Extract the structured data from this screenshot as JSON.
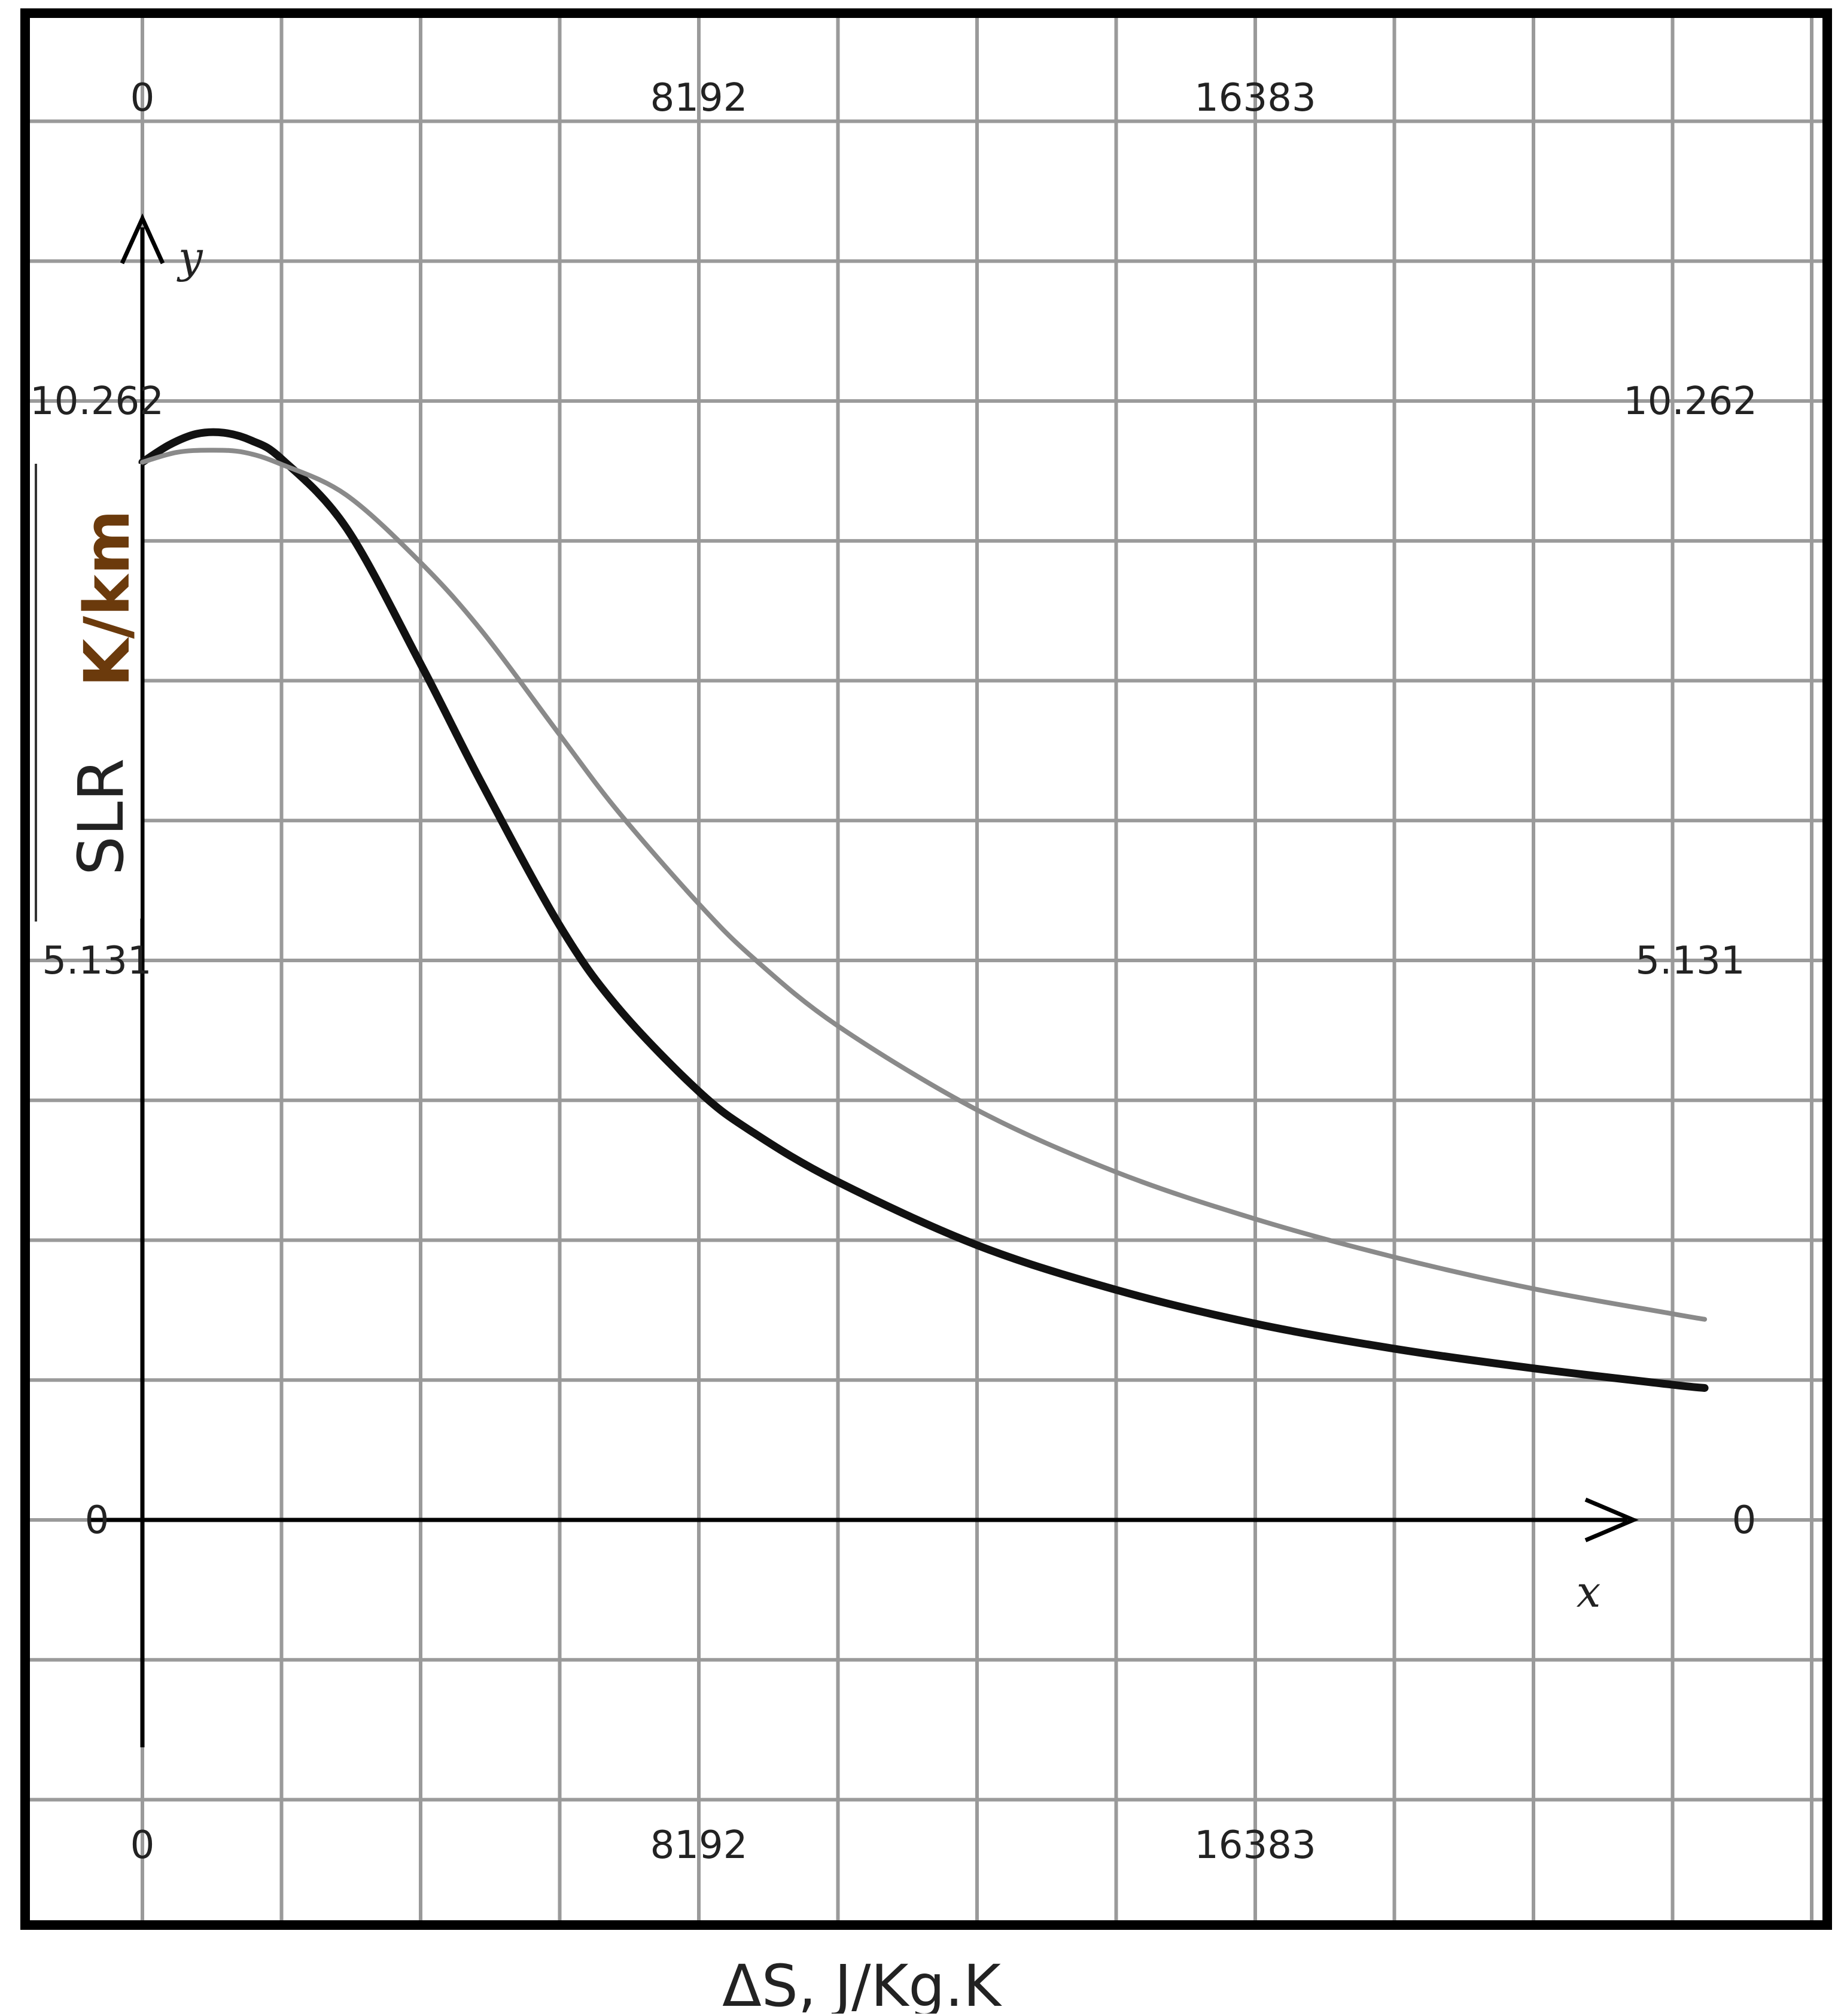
{
  "chart_data": {
    "type": "line",
    "xlabel": "ΔS, J/Kg.K",
    "ylabel_part1": "SLR",
    "ylabel_part2": "K/km",
    "x_axis_letter": "x",
    "y_axis_letter": "y",
    "xlim": [
      -4096,
      27000
    ],
    "ylim": [
      -2565,
      13800
    ],
    "x_ticks": [
      {
        "value": 0,
        "label": "0"
      },
      {
        "value": 8192,
        "label": "8192"
      },
      {
        "value": 16383,
        "label": "16383"
      }
    ],
    "y_ticks": [
      {
        "value": 0,
        "label": "0"
      },
      {
        "value": 5.131,
        "label": "5.131"
      },
      {
        "value": 10.262,
        "label": "10.262"
      }
    ],
    "x_grid_step": 2048,
    "y_grid_step": 1.2827,
    "grid": true,
    "series": [
      {
        "color": "#111111",
        "points": [
          [
            0,
            9.7
          ],
          [
            400,
            9.86
          ],
          [
            800,
            9.96
          ],
          [
            1200,
            9.97
          ],
          [
            1600,
            9.9
          ],
          [
            2048,
            9.73
          ],
          [
            3000,
            9.1
          ],
          [
            4096,
            7.85
          ],
          [
            5000,
            6.75
          ],
          [
            6144,
            5.45
          ],
          [
            7000,
            4.7
          ],
          [
            8192,
            3.93
          ],
          [
            9000,
            3.55
          ],
          [
            10240,
            3.1
          ],
          [
            12288,
            2.52
          ],
          [
            14336,
            2.11
          ],
          [
            16383,
            1.8
          ],
          [
            18432,
            1.57
          ],
          [
            20480,
            1.39
          ],
          [
            22528,
            1.24
          ],
          [
            23000,
            1.21
          ]
        ]
      },
      {
        "color": "#8a8a8a",
        "points": [
          [
            0,
            9.7
          ],
          [
            500,
            9.79
          ],
          [
            1000,
            9.81
          ],
          [
            1500,
            9.79
          ],
          [
            2048,
            9.68
          ],
          [
            3000,
            9.4
          ],
          [
            4096,
            8.78
          ],
          [
            5000,
            8.15
          ],
          [
            6144,
            7.2
          ],
          [
            7000,
            6.5
          ],
          [
            8192,
            5.65
          ],
          [
            9000,
            5.15
          ],
          [
            10240,
            4.53
          ],
          [
            12288,
            3.76
          ],
          [
            14336,
            3.19
          ],
          [
            16383,
            2.76
          ],
          [
            18432,
            2.41
          ],
          [
            20480,
            2.12
          ],
          [
            22528,
            1.89
          ],
          [
            23000,
            1.84
          ]
        ]
      }
    ]
  }
}
